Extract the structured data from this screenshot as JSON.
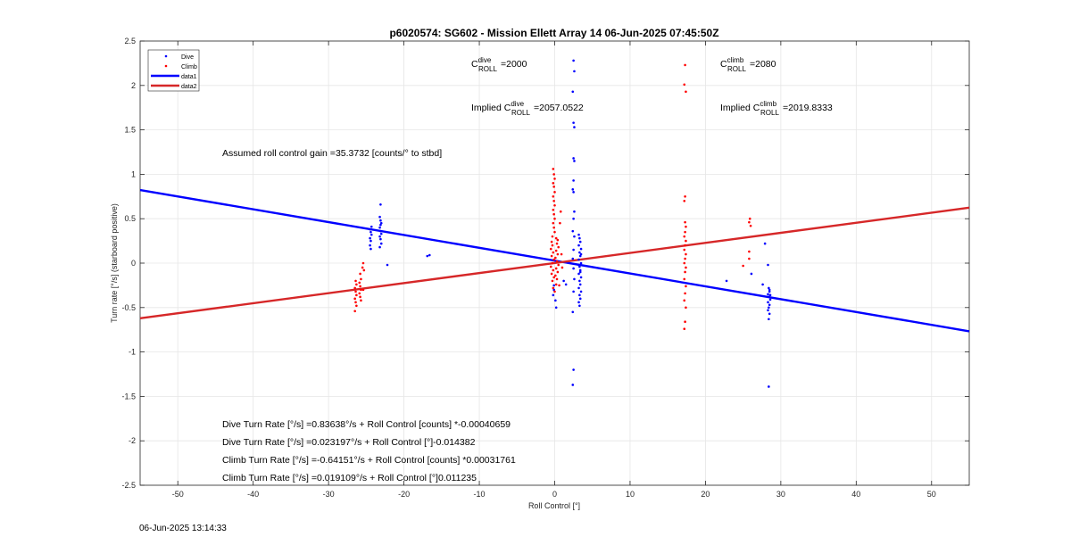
{
  "chart_data": {
    "type": "scatter",
    "title": "p6020574: SG602 - Mission Ellett Array 14 06-Jun-2025 07:45:50Z",
    "xlabel": "Roll Control [°]",
    "ylabel": "Turn rate [°/s] (starboard positive)",
    "xlim": [
      -55,
      55
    ],
    "ylim": [
      -2.5,
      2.5
    ],
    "x_ticks": [
      -50,
      -40,
      -30,
      -20,
      -10,
      0,
      10,
      20,
      30,
      40,
      50
    ],
    "y_ticks": [
      -2.5,
      -2,
      -1.5,
      -1,
      -0.5,
      0,
      0.5,
      1,
      1.5,
      2,
      2.5
    ],
    "x_tick_labels": [
      "-50",
      "-40",
      "-30",
      "-20",
      "-10",
      "0",
      "10",
      "20",
      "30",
      "40",
      "50"
    ],
    "y_tick_labels": [
      "-2.5",
      "-2",
      "-1.5",
      "-1",
      "-0.5",
      "0",
      "0.5",
      "1",
      "1.5",
      "2",
      "2.5"
    ],
    "grid": true,
    "legend_position": "top-left",
    "legend": [
      {
        "label": "Dive",
        "kind": "marker",
        "color": "#0000ff"
      },
      {
        "label": "Climb",
        "kind": "marker",
        "color": "#ff0000"
      },
      {
        "label": "data1",
        "kind": "line",
        "color": "#0000ff"
      },
      {
        "label": "data2",
        "kind": "line",
        "color": "#d62728"
      }
    ],
    "series": [
      {
        "name": "Dive",
        "color": "#0000ff",
        "points": [
          [
            -24.5,
            0.2
          ],
          [
            -24.4,
            0.25
          ],
          [
            -24.5,
            0.28
          ],
          [
            -24.3,
            0.32
          ],
          [
            -24.4,
            0.35
          ],
          [
            -24.5,
            0.38
          ],
          [
            -24.3,
            0.41
          ],
          [
            -24.4,
            0.16
          ],
          [
            -23.1,
            0.66
          ],
          [
            -23.2,
            0.52
          ],
          [
            -23.1,
            0.48
          ],
          [
            -23.0,
            0.45
          ],
          [
            -23.2,
            0.4
          ],
          [
            -23.1,
            0.36
          ],
          [
            -23.0,
            0.33
          ],
          [
            -23.2,
            0.3
          ],
          [
            -23.1,
            0.27
          ],
          [
            -23.0,
            0.22
          ],
          [
            -23.2,
            0.18
          ],
          [
            -23.1,
            0.43
          ],
          [
            -22.2,
            -0.02
          ],
          [
            -16.6,
            0.09
          ],
          [
            -16.9,
            0.08
          ],
          [
            -0.1,
            -0.3
          ],
          [
            -0.2,
            -0.36
          ],
          [
            0.1,
            -0.42
          ],
          [
            0.2,
            -0.5
          ],
          [
            -0.1,
            -0.25
          ],
          [
            1.2,
            -0.2
          ],
          [
            1.5,
            -0.24
          ],
          [
            2.5,
            2.28
          ],
          [
            2.6,
            2.16
          ],
          [
            2.4,
            1.93
          ],
          [
            2.5,
            1.58
          ],
          [
            2.6,
            1.53
          ],
          [
            2.5,
            1.18
          ],
          [
            2.6,
            1.15
          ],
          [
            2.5,
            0.93
          ],
          [
            2.4,
            0.83
          ],
          [
            2.5,
            0.8
          ],
          [
            2.6,
            0.58
          ],
          [
            2.5,
            0.5
          ],
          [
            2.4,
            0.36
          ],
          [
            2.6,
            0.3
          ],
          [
            2.5,
            0.15
          ],
          [
            2.4,
            0.05
          ],
          [
            2.5,
            -0.06
          ],
          [
            2.6,
            -0.18
          ],
          [
            2.5,
            -0.32
          ],
          [
            2.4,
            -0.55
          ],
          [
            2.5,
            -1.2
          ],
          [
            2.4,
            -1.37
          ],
          [
            3.2,
            0.32
          ],
          [
            3.3,
            0.28
          ],
          [
            3.4,
            0.24
          ],
          [
            3.2,
            0.2
          ],
          [
            3.5,
            0.16
          ],
          [
            3.3,
            0.12
          ],
          [
            3.4,
            0.08
          ],
          [
            3.2,
            0.04
          ],
          [
            3.5,
            0.0
          ],
          [
            3.3,
            -0.04
          ],
          [
            3.4,
            -0.08
          ],
          [
            3.2,
            -0.12
          ],
          [
            3.5,
            -0.16
          ],
          [
            3.3,
            -0.2
          ],
          [
            3.4,
            -0.24
          ],
          [
            3.2,
            -0.28
          ],
          [
            3.5,
            -0.32
          ],
          [
            3.3,
            -0.36
          ],
          [
            3.4,
            -0.4
          ],
          [
            3.2,
            -0.44
          ],
          [
            3.3,
            -0.48
          ],
          [
            3.4,
            -0.1
          ],
          [
            3.2,
            -0.02
          ],
          [
            3.5,
            0.1
          ],
          [
            22.8,
            -0.2
          ],
          [
            26.1,
            -0.12
          ],
          [
            27.9,
            0.22
          ],
          [
            27.6,
            -0.24
          ],
          [
            28.3,
            -0.02
          ],
          [
            28.4,
            -0.28
          ],
          [
            28.5,
            -0.32
          ],
          [
            28.3,
            -0.35
          ],
          [
            28.4,
            -0.38
          ],
          [
            28.6,
            -0.41
          ],
          [
            28.3,
            -0.44
          ],
          [
            28.5,
            -0.47
          ],
          [
            28.4,
            -0.5
          ],
          [
            28.3,
            -0.53
          ],
          [
            28.5,
            -0.57
          ],
          [
            28.4,
            -0.63
          ],
          [
            28.5,
            -0.3
          ],
          [
            28.6,
            -0.36
          ],
          [
            28.4,
            -1.39
          ]
        ]
      },
      {
        "name": "Climb",
        "color": "#ff0000",
        "points": [
          [
            -26.4,
            -0.2
          ],
          [
            -26.3,
            -0.24
          ],
          [
            -26.5,
            -0.28
          ],
          [
            -26.4,
            -0.32
          ],
          [
            -26.3,
            -0.36
          ],
          [
            -26.5,
            -0.4
          ],
          [
            -26.4,
            -0.44
          ],
          [
            -26.3,
            -0.48
          ],
          [
            -26.5,
            -0.54
          ],
          [
            -25.8,
            -0.12
          ],
          [
            -25.7,
            -0.18
          ],
          [
            -25.9,
            -0.22
          ],
          [
            -25.8,
            -0.26
          ],
          [
            -25.7,
            -0.3
          ],
          [
            -25.9,
            -0.34
          ],
          [
            -25.8,
            -0.38
          ],
          [
            -25.7,
            -0.42
          ],
          [
            -25.4,
            0.0
          ],
          [
            -25.5,
            -0.05
          ],
          [
            -25.3,
            -0.08
          ],
          [
            -25.4,
            -0.3
          ],
          [
            -0.2,
            1.06
          ],
          [
            -0.1,
            1.0
          ],
          [
            0.0,
            0.95
          ],
          [
            -0.2,
            0.9
          ],
          [
            -0.1,
            0.86
          ],
          [
            0.0,
            0.8
          ],
          [
            -0.2,
            0.75
          ],
          [
            -0.1,
            0.7
          ],
          [
            0.0,
            0.65
          ],
          [
            -0.2,
            0.6
          ],
          [
            -0.1,
            0.55
          ],
          [
            0.0,
            0.5
          ],
          [
            -0.2,
            0.45
          ],
          [
            -0.1,
            0.4
          ],
          [
            0.0,
            0.35
          ],
          [
            -0.3,
            0.3
          ],
          [
            0.2,
            0.28
          ],
          [
            0.4,
            0.26
          ],
          [
            -0.4,
            0.24
          ],
          [
            0.3,
            0.22
          ],
          [
            -0.3,
            0.2
          ],
          [
            0.5,
            0.18
          ],
          [
            -0.5,
            0.16
          ],
          [
            0.2,
            0.14
          ],
          [
            -0.2,
            0.12
          ],
          [
            0.4,
            0.1
          ],
          [
            -0.4,
            0.08
          ],
          [
            0.1,
            0.06
          ],
          [
            -0.1,
            0.04
          ],
          [
            0.3,
            0.02
          ],
          [
            -0.3,
            0.0
          ],
          [
            0.5,
            -0.02
          ],
          [
            -0.5,
            -0.04
          ],
          [
            0.2,
            -0.06
          ],
          [
            -0.2,
            -0.08
          ],
          [
            0.4,
            -0.1
          ],
          [
            -0.4,
            -0.12
          ],
          [
            0.1,
            -0.14
          ],
          [
            -0.1,
            -0.16
          ],
          [
            0.3,
            -0.18
          ],
          [
            -0.3,
            -0.2
          ],
          [
            0.2,
            -0.24
          ],
          [
            -0.2,
            -0.28
          ],
          [
            0.0,
            -0.32
          ],
          [
            0.8,
            0.58
          ],
          [
            0.7,
            0.45
          ],
          [
            0.9,
            0.1
          ],
          [
            1.0,
            -0.05
          ],
          [
            0.6,
            -0.25
          ],
          [
            17.3,
            2.23
          ],
          [
            17.2,
            2.01
          ],
          [
            17.4,
            1.93
          ],
          [
            17.3,
            0.75
          ],
          [
            17.2,
            0.7
          ],
          [
            17.3,
            0.46
          ],
          [
            17.4,
            0.41
          ],
          [
            17.3,
            0.35
          ],
          [
            17.2,
            0.3
          ],
          [
            17.4,
            0.25
          ],
          [
            17.3,
            0.2
          ],
          [
            17.2,
            0.15
          ],
          [
            17.4,
            0.1
          ],
          [
            17.3,
            0.05
          ],
          [
            17.2,
            0.0
          ],
          [
            17.4,
            -0.05
          ],
          [
            17.3,
            -0.1
          ],
          [
            17.2,
            -0.18
          ],
          [
            17.4,
            -0.26
          ],
          [
            17.3,
            -0.34
          ],
          [
            17.2,
            -0.42
          ],
          [
            17.4,
            -0.5
          ],
          [
            17.3,
            -0.66
          ],
          [
            17.2,
            -0.74
          ],
          [
            25.0,
            -0.03
          ],
          [
            25.8,
            0.13
          ],
          [
            25.8,
            0.05
          ],
          [
            25.9,
            0.5
          ],
          [
            25.8,
            0.46
          ],
          [
            26.0,
            0.42
          ]
        ]
      }
    ],
    "fit_lines": [
      {
        "name": "data1",
        "color": "#0000ff",
        "x": [
          -55,
          55
        ],
        "y": [
          0.823,
          -0.767
        ]
      },
      {
        "name": "data2",
        "color": "#d62728",
        "x": [
          -55,
          55
        ],
        "y": [
          -0.621,
          0.624
        ]
      }
    ],
    "annotations": {
      "c_roll_dive": {
        "prefix": "C",
        "sup": "dive",
        "sub": "ROLL",
        "value": "=2000"
      },
      "c_roll_climb": {
        "prefix": "C",
        "sup": "climb",
        "sub": "ROLL",
        "value": "=2080"
      },
      "implied_dive": {
        "prefix": "Implied C",
        "sup": "dive",
        "sub": "ROLL",
        "value": "=2057.0522"
      },
      "implied_climb": {
        "prefix": "Implied C",
        "sup": "climb",
        "sub": "ROLL",
        "value": "=2019.8333"
      },
      "gain": "Assumed roll control gain =35.3732 [counts/° to stbd]",
      "eq1": "Dive Turn Rate [°/s] =0.83638°/s + Roll Control [counts] *-0.00040659",
      "eq2": "Dive Turn Rate [°/s] =0.023197°/s + Roll Control [°]-0.014382",
      "eq3": "Climb Turn Rate [°/s] =-0.64151°/s + Roll Control [counts] *0.00031761",
      "eq4": "Climb Turn Rate [°/s] =0.019109°/s + Roll Control [°]0.011235"
    }
  },
  "footer_timestamp": "06-Jun-2025 13:14:33"
}
